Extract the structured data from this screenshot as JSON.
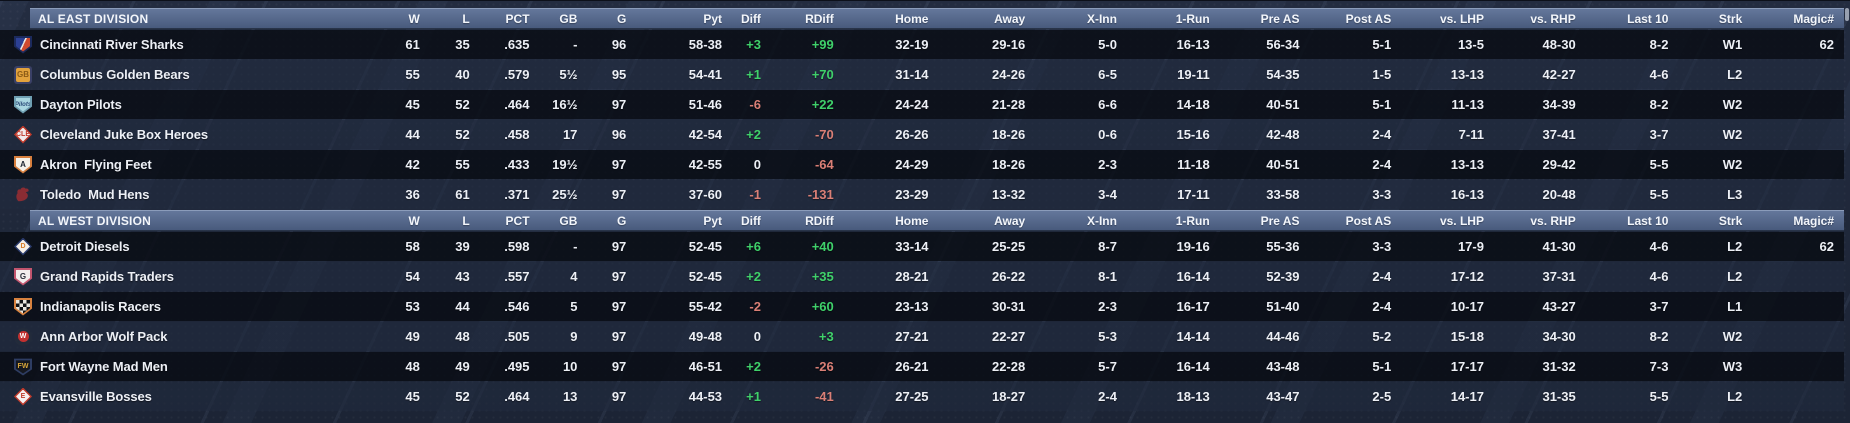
{
  "colors": {
    "positive": "#3fd06a",
    "negative": "#da7f76"
  },
  "table": {
    "columns": [
      "W",
      "L",
      "PCT",
      "GB",
      "G",
      "Pyt",
      "Diff",
      "RDiff",
      "Home",
      "Away",
      "X-Inn",
      "1-Run",
      "Pre AS",
      "Post AS",
      "vs. LHP",
      "vs. RHP",
      "Last 10",
      "Strk",
      "Magic#"
    ],
    "divisions": [
      {
        "name": "AL EAST DIVISION",
        "teams": [
          {
            "name": "Cincinnati River Sharks",
            "logo": {
              "shape": "plate2",
              "c1": "#2c4094",
              "c2": "#cf4a2e",
              "border": "#1c2a5c"
            },
            "stats": [
              "61",
              "35",
              ".635",
              "-",
              "96",
              "58-38",
              "+3",
              "+99",
              "32-19",
              "29-16",
              "5-0",
              "16-13",
              "56-34",
              "5-1",
              "13-5",
              "48-30",
              "8-2",
              "W1",
              "62"
            ]
          },
          {
            "name": "Columbus Golden Bears",
            "logo": {
              "shape": "square",
              "bg": "#e2a23c",
              "text": "GB",
              "fg": "#8a5a16",
              "border": "#3a4066"
            },
            "stats": [
              "55",
              "40",
              ".579",
              "5½",
              "95",
              "54-41",
              "+1",
              "+70",
              "31-14",
              "24-26",
              "6-5",
              "19-11",
              "54-35",
              "1-5",
              "13-13",
              "42-27",
              "4-6",
              "L2",
              ""
            ]
          },
          {
            "name": "Dayton Pilots",
            "logo": {
              "shape": "plate",
              "bg": "#a9d6e0",
              "text": "Pilots",
              "fg": "#2a4a78",
              "italic": true,
              "border": "#6f9fb2"
            },
            "stats": [
              "45",
              "52",
              ".464",
              "16½",
              "97",
              "51-46",
              "-6",
              "+22",
              "24-24",
              "21-28",
              "6-6",
              "14-18",
              "40-51",
              "5-1",
              "11-13",
              "34-39",
              "8-2",
              "W2",
              ""
            ]
          },
          {
            "name": "Cleveland Juke Box Heroes",
            "logo": {
              "shape": "diamond",
              "bg": "#f2ecec",
              "text": "CLE",
              "fg": "#c03a2b",
              "border": "#c03a2b"
            },
            "stats": [
              "44",
              "52",
              ".458",
              "17",
              "96",
              "42-54",
              "+2",
              "-70",
              "26-26",
              "18-26",
              "0-6",
              "15-16",
              "42-48",
              "2-4",
              "7-11",
              "37-41",
              "3-7",
              "W2",
              ""
            ]
          },
          {
            "name": "Akron  Flying Feet",
            "logo": {
              "shape": "plate",
              "bg": "#f5f1ea",
              "text": "A",
              "fg": "#1d2430",
              "border": "#d77f3e"
            },
            "stats": [
              "42",
              "55",
              ".433",
              "19½",
              "97",
              "42-55",
              "0",
              "-64",
              "24-29",
              "18-26",
              "2-3",
              "11-18",
              "40-51",
              "2-4",
              "13-13",
              "29-42",
              "5-5",
              "W2",
              ""
            ]
          },
          {
            "name": "Toledo  Mud Hens",
            "logo": {
              "shape": "rooster",
              "bg": "#8a2c33"
            },
            "stats": [
              "36",
              "61",
              ".371",
              "25½",
              "97",
              "37-60",
              "-1",
              "-131",
              "23-29",
              "13-32",
              "3-4",
              "17-11",
              "33-58",
              "3-3",
              "16-13",
              "20-48",
              "5-5",
              "L3",
              ""
            ]
          }
        ]
      },
      {
        "name": "AL WEST DIVISION",
        "teams": [
          {
            "name": "Detroit Diesels",
            "logo": {
              "shape": "diamond",
              "bg": "#f4efe8",
              "text": "D",
              "fg": "#d97c28",
              "border": "#2a3a6b"
            },
            "stats": [
              "58",
              "39",
              ".598",
              "-",
              "97",
              "52-45",
              "+6",
              "+40",
              "33-14",
              "25-25",
              "8-7",
              "19-16",
              "55-36",
              "3-3",
              "17-9",
              "41-30",
              "4-6",
              "L2",
              "62"
            ]
          },
          {
            "name": "Grand Rapids Traders",
            "logo": {
              "shape": "plate",
              "bg": "#f2eeee",
              "text": "G",
              "fg": "#2a2f3a",
              "border": "#c2556e"
            },
            "stats": [
              "54",
              "43",
              ".557",
              "4",
              "97",
              "52-45",
              "+2",
              "+35",
              "28-21",
              "26-22",
              "8-1",
              "16-14",
              "52-39",
              "2-4",
              "17-12",
              "37-31",
              "4-6",
              "L2",
              ""
            ]
          },
          {
            "name": "Indianapolis Racers",
            "logo": {
              "shape": "checker",
              "border": "#d8823f"
            },
            "stats": [
              "53",
              "44",
              ".546",
              "5",
              "97",
              "55-42",
              "-2",
              "+60",
              "23-13",
              "30-31",
              "2-3",
              "16-17",
              "51-40",
              "2-4",
              "10-17",
              "43-27",
              "3-7",
              "L1",
              ""
            ]
          },
          {
            "name": "Ann Arbor Wolf Pack",
            "logo": {
              "shape": "circle2",
              "outer": "#222b3b",
              "inner": "#c23030",
              "text": "W",
              "fg": "#ffffff"
            },
            "stats": [
              "49",
              "48",
              ".505",
              "9",
              "97",
              "49-48",
              "0",
              "+3",
              "27-21",
              "22-27",
              "5-3",
              "14-14",
              "44-46",
              "5-2",
              "15-18",
              "34-30",
              "8-2",
              "W2",
              ""
            ]
          },
          {
            "name": "Fort Wayne Mad Men",
            "logo": {
              "shape": "shield",
              "bg": "#15181f",
              "text": "FW",
              "fg": "#d9a73a",
              "border": "#2e3d63"
            },
            "stats": [
              "48",
              "49",
              ".495",
              "10",
              "97",
              "46-51",
              "+2",
              "-26",
              "26-21",
              "22-28",
              "5-7",
              "16-14",
              "43-48",
              "5-1",
              "17-17",
              "31-32",
              "7-3",
              "W3",
              ""
            ]
          },
          {
            "name": "Evansville Bosses",
            "logo": {
              "shape": "diamond",
              "bg": "#f6f0f0",
              "text": "E",
              "fg": "#c03a2b",
              "border": "#c03a2b"
            },
            "stats": [
              "45",
              "52",
              ".464",
              "13",
              "97",
              "44-53",
              "+1",
              "-41",
              "27-25",
              "18-27",
              "2-4",
              "18-13",
              "43-47",
              "2-5",
              "14-17",
              "31-35",
              "5-5",
              "L2",
              ""
            ]
          }
        ]
      }
    ]
  }
}
